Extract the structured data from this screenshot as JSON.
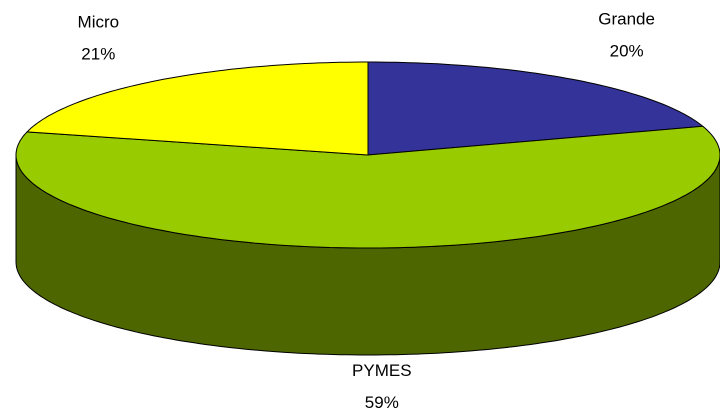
{
  "chart_data": {
    "type": "pie",
    "categories": [
      "Grande",
      "PYMES",
      "Micro"
    ],
    "values": [
      20,
      59,
      21
    ],
    "value_labels": [
      "20%",
      "59%",
      "21%"
    ],
    "colors": [
      "#333399",
      "#99cc00",
      "#ffff00"
    ]
  }
}
